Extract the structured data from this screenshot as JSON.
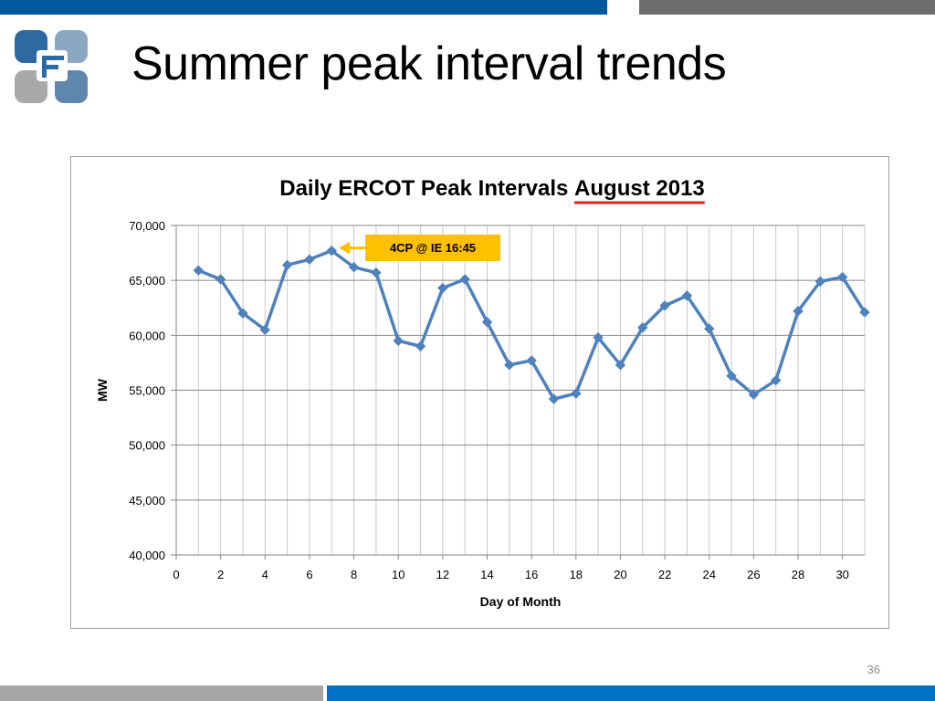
{
  "slide": {
    "title": "Summer peak interval trends",
    "page_number": "36"
  },
  "colors": {
    "top_bar_blue": "#00599c",
    "top_bar_gray": "#6e6e6e",
    "bottom_bar_gray": "#a6a6a6",
    "bottom_bar_blue": "#0071c5",
    "series_line": "#4f81bd",
    "annotation_fill": "#ffc000",
    "title_underline": "#e02020"
  },
  "logo": {
    "icon": "company-logo-f",
    "letter": "F"
  },
  "chart_data": {
    "type": "line",
    "title_main": "Daily ERCOT Peak Intervals ",
    "title_emphasis": "August 2013",
    "xlabel": "Day of Month",
    "ylabel": "MW",
    "xlim": [
      0,
      31
    ],
    "ylim": [
      40000,
      70000
    ],
    "x_ticks": [
      0,
      2,
      4,
      6,
      8,
      10,
      12,
      14,
      16,
      18,
      20,
      22,
      24,
      26,
      28,
      30
    ],
    "y_ticks": [
      40000,
      45000,
      50000,
      55000,
      60000,
      65000,
      70000
    ],
    "y_tick_labels": [
      "40,000",
      "45,000",
      "50,000",
      "55,000",
      "60,000",
      "65,000",
      "70,000"
    ],
    "grid": {
      "vertical_every": 1,
      "horizontal_every": 5000
    },
    "marker": "diamond",
    "series": [
      {
        "x": [
          1,
          2,
          3,
          4,
          5,
          6,
          7,
          8,
          9,
          10,
          11,
          12,
          13,
          14,
          15,
          16,
          17,
          18,
          19,
          20,
          21,
          22,
          23,
          24,
          25,
          26,
          27,
          28,
          29,
          30,
          31
        ],
        "values": [
          65900,
          65100,
          62000,
          60500,
          66400,
          66900,
          67700,
          66200,
          65700,
          59500,
          59000,
          64300,
          65100,
          61200,
          57300,
          57700,
          54200,
          54700,
          59800,
          57300,
          60700,
          62700,
          63600,
          60600,
          56300,
          54600,
          55900,
          62200,
          64900,
          65300,
          62100
        ]
      }
    ],
    "annotation": {
      "text": "4CP @ IE 16:45",
      "x": 7,
      "y": 67700
    }
  }
}
